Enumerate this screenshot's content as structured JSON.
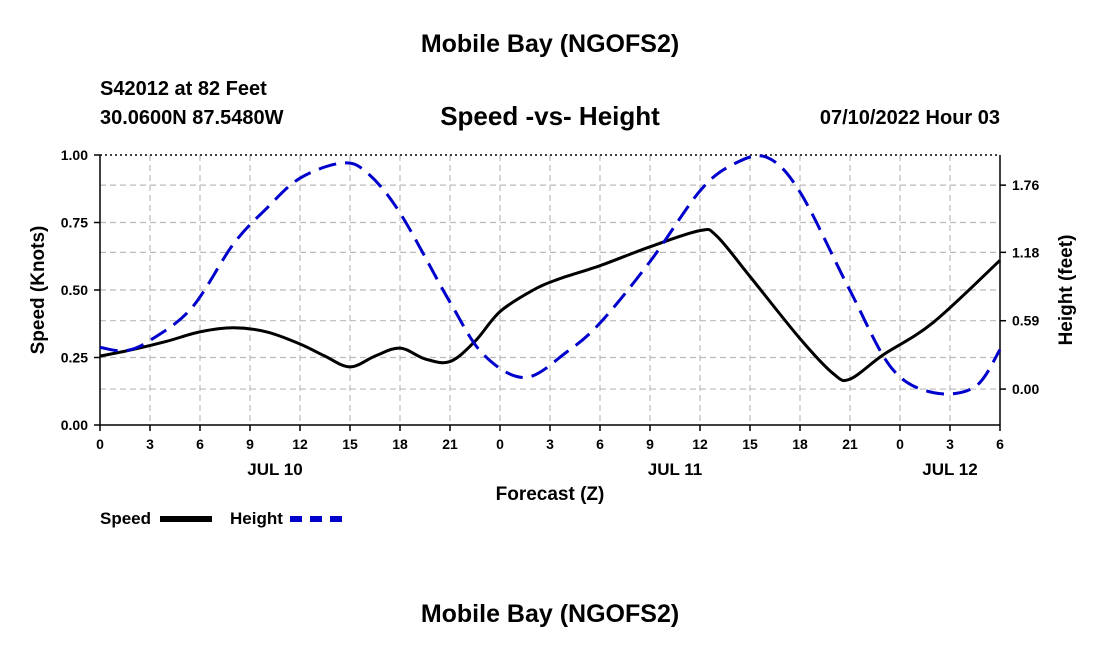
{
  "header": {
    "main_title": "Mobile Bay (NGOFS2)",
    "station": "S42012 at 82 Feet",
    "coords": "30.0600N  87.5480W",
    "subtitle": "Speed -vs- Height",
    "datetime": "07/10/2022 Hour 03",
    "footer_title": "Mobile Bay (NGOFS2)"
  },
  "legend": {
    "speed_label": "Speed",
    "height_label": "Height"
  },
  "colors": {
    "speed": "#000000",
    "height": "#0000cc",
    "grid": "#bbbbbb"
  },
  "chart_data": {
    "type": "line",
    "title": "Speed -vs- Height",
    "xlabel": "Forecast (Z)",
    "ylabel": "Speed (Knots)",
    "y2label": "Height (feet)",
    "xlim": [
      0,
      54
    ],
    "ylim": [
      0,
      1.0
    ],
    "y2_ticks": [
      {
        "value": 0.0,
        "label": "0.00"
      },
      {
        "value": 0.59,
        "label": "0.59"
      },
      {
        "value": 1.18,
        "label": "1.18"
      },
      {
        "value": 1.76,
        "label": "1.76"
      }
    ],
    "y2_range": [
      -0.31,
      2.02
    ],
    "y_ticks": [
      {
        "value": 0.0,
        "label": "0.00"
      },
      {
        "value": 0.25,
        "label": "0.25"
      },
      {
        "value": 0.5,
        "label": "0.50"
      },
      {
        "value": 0.75,
        "label": "0.75"
      },
      {
        "value": 1.0,
        "label": "1.00"
      }
    ],
    "x_ticks": [
      {
        "value": 0,
        "label": "0"
      },
      {
        "value": 3,
        "label": "3"
      },
      {
        "value": 6,
        "label": "6"
      },
      {
        "value": 9,
        "label": "9"
      },
      {
        "value": 12,
        "label": "12"
      },
      {
        "value": 15,
        "label": "15"
      },
      {
        "value": 18,
        "label": "18"
      },
      {
        "value": 21,
        "label": "21"
      },
      {
        "value": 24,
        "label": "0"
      },
      {
        "value": 27,
        "label": "3"
      },
      {
        "value": 30,
        "label": "6"
      },
      {
        "value": 33,
        "label": "9"
      },
      {
        "value": 36,
        "label": "12"
      },
      {
        "value": 39,
        "label": "15"
      },
      {
        "value": 42,
        "label": "18"
      },
      {
        "value": 45,
        "label": "21"
      },
      {
        "value": 48,
        "label": "0"
      },
      {
        "value": 51,
        "label": "3"
      },
      {
        "value": 54,
        "label": "6"
      }
    ],
    "day_labels": [
      {
        "value": 10.5,
        "label": "JUL 10"
      },
      {
        "value": 34.5,
        "label": "JUL 11"
      },
      {
        "value": 51.0,
        "label": "JUL 12"
      }
    ],
    "series": [
      {
        "name": "Speed",
        "axis": "left",
        "style": "solid",
        "x": [
          0,
          2,
          4,
          6,
          8,
          10,
          12,
          13.5,
          15,
          16.5,
          18,
          19.5,
          21,
          22.5,
          24,
          26,
          27.5,
          30,
          33,
          36,
          37,
          39,
          42,
          44,
          45,
          47,
          50,
          54
        ],
        "values": [
          0.255,
          0.28,
          0.31,
          0.345,
          0.36,
          0.345,
          0.3,
          0.255,
          0.215,
          0.255,
          0.285,
          0.245,
          0.235,
          0.31,
          0.42,
          0.5,
          0.54,
          0.59,
          0.66,
          0.72,
          0.7,
          0.55,
          0.32,
          0.19,
          0.17,
          0.26,
          0.38,
          0.61
        ]
      },
      {
        "name": "Height",
        "axis": "right",
        "style": "dashed",
        "x": [
          0,
          1.5,
          3,
          5.5,
          8,
          10,
          12,
          14.5,
          16,
          18,
          21,
          23,
          25.5,
          28,
          30,
          33,
          36,
          38,
          40,
          42,
          45,
          47.5,
          50,
          52.5,
          54
        ],
        "values": [
          0.36,
          0.33,
          0.42,
          0.7,
          1.25,
          1.56,
          1.82,
          1.95,
          1.87,
          1.52,
          0.75,
          0.3,
          0.1,
          0.32,
          0.57,
          1.1,
          1.71,
          1.94,
          2.0,
          1.7,
          0.85,
          0.18,
          -0.03,
          0.02,
          0.34
        ]
      }
    ]
  }
}
